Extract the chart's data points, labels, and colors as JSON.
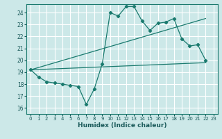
{
  "xlabel": "Humidex (Indice chaleur)",
  "bg_color": "#cce8e8",
  "grid_color": "#ffffff",
  "line_color": "#1a7a6e",
  "xlim": [
    -0.5,
    23.5
  ],
  "ylim": [
    15.5,
    24.7
  ],
  "yticks": [
    16,
    17,
    18,
    19,
    20,
    21,
    22,
    23,
    24
  ],
  "xticks": [
    0,
    1,
    2,
    3,
    4,
    5,
    6,
    7,
    8,
    9,
    10,
    11,
    12,
    13,
    14,
    15,
    16,
    17,
    18,
    19,
    20,
    21,
    22,
    23
  ],
  "line1_x": [
    0,
    1,
    2,
    3,
    4,
    5,
    6,
    7,
    8,
    9,
    10,
    11,
    12,
    13,
    14,
    15,
    16,
    17,
    18,
    19,
    20,
    21,
    22
  ],
  "line1_y": [
    19.2,
    18.6,
    18.2,
    18.1,
    18.0,
    17.9,
    17.8,
    16.3,
    17.6,
    19.7,
    24.0,
    23.7,
    24.5,
    24.5,
    23.3,
    22.5,
    23.1,
    23.2,
    23.5,
    21.8,
    21.2,
    21.3,
    20.0
  ],
  "line2_x": [
    0,
    22
  ],
  "line2_y": [
    19.2,
    23.5
  ],
  "line3_x": [
    0,
    22
  ],
  "line3_y": [
    19.2,
    19.8
  ]
}
